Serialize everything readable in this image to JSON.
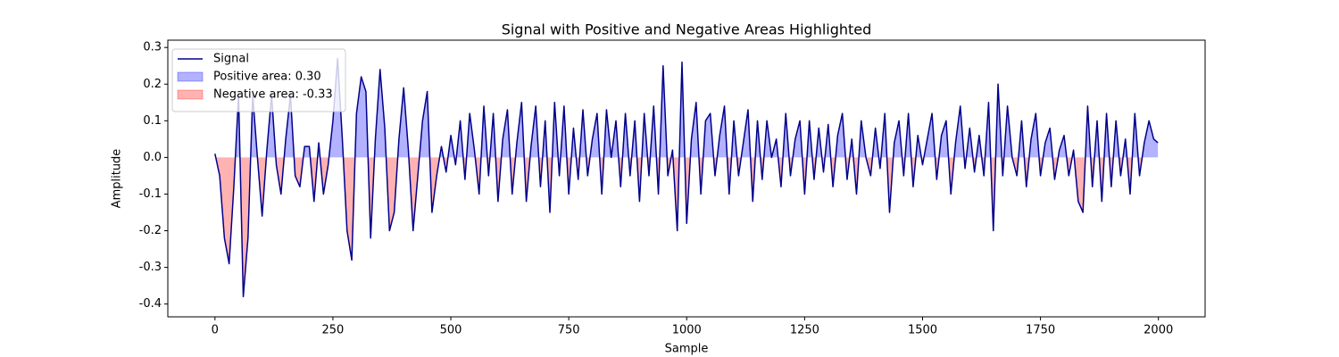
{
  "chart_data": {
    "type": "line",
    "title": "Signal with Positive and Negative Areas Highlighted",
    "xlabel": "Sample",
    "ylabel": "Amplitude",
    "x": [
      0,
      10,
      20,
      30,
      40,
      50,
      60,
      70,
      80,
      90,
      100,
      110,
      120,
      130,
      140,
      150,
      160,
      170,
      180,
      190,
      200,
      210,
      220,
      230,
      240,
      250,
      260,
      270,
      280,
      290,
      300,
      310,
      320,
      330,
      340,
      350,
      360,
      370,
      380,
      390,
      400,
      410,
      420,
      430,
      440,
      450,
      460,
      470,
      480,
      490,
      500,
      510,
      520,
      530,
      540,
      550,
      560,
      570,
      580,
      590,
      600,
      610,
      620,
      630,
      640,
      650,
      660,
      670,
      680,
      690,
      700,
      710,
      720,
      730,
      740,
      750,
      760,
      770,
      780,
      790,
      800,
      810,
      820,
      830,
      840,
      850,
      860,
      870,
      880,
      890,
      900,
      910,
      920,
      930,
      940,
      950,
      960,
      970,
      980,
      990,
      1000,
      1010,
      1020,
      1030,
      1040,
      1050,
      1060,
      1070,
      1080,
      1090,
      1100,
      1110,
      1120,
      1130,
      1140,
      1150,
      1160,
      1170,
      1180,
      1190,
      1200,
      1210,
      1220,
      1230,
      1240,
      1250,
      1260,
      1270,
      1280,
      1290,
      1300,
      1310,
      1320,
      1330,
      1340,
      1350,
      1360,
      1370,
      1380,
      1390,
      1400,
      1410,
      1420,
      1430,
      1440,
      1450,
      1460,
      1470,
      1480,
      1490,
      1500,
      1510,
      1520,
      1530,
      1540,
      1550,
      1560,
      1570,
      1580,
      1590,
      1600,
      1610,
      1620,
      1630,
      1640,
      1650,
      1660,
      1670,
      1680,
      1690,
      1700,
      1710,
      1720,
      1730,
      1740,
      1750,
      1760,
      1770,
      1780,
      1790,
      1800,
      1810,
      1820,
      1830,
      1840,
      1850,
      1860,
      1870,
      1880,
      1890,
      1900,
      1910,
      1920,
      1930,
      1940,
      1950,
      1960,
      1970,
      1980,
      1990,
      1999
    ],
    "series": [
      {
        "name": "Signal",
        "color": "#00008b",
        "values": [
          0.01,
          -0.05,
          -0.22,
          -0.29,
          -0.08,
          0.17,
          -0.38,
          -0.22,
          0.17,
          0.0,
          -0.16,
          0.02,
          0.17,
          -0.02,
          -0.1,
          0.05,
          0.17,
          -0.05,
          -0.08,
          0.03,
          0.03,
          -0.12,
          0.04,
          -0.1,
          -0.02,
          0.1,
          0.27,
          0.05,
          -0.2,
          -0.28,
          0.12,
          0.22,
          0.18,
          -0.22,
          0.05,
          0.24,
          0.08,
          -0.2,
          -0.15,
          0.05,
          0.19,
          0.02,
          -0.2,
          -0.05,
          0.1,
          0.18,
          -0.15,
          -0.05,
          0.03,
          -0.04,
          0.06,
          -0.02,
          0.1,
          -0.06,
          0.12,
          0.02,
          -0.1,
          0.14,
          -0.05,
          0.12,
          -0.12,
          0.05,
          0.13,
          -0.1,
          0.04,
          0.15,
          -0.12,
          0.03,
          0.14,
          -0.08,
          0.1,
          -0.15,
          0.15,
          -0.05,
          0.14,
          -0.1,
          0.08,
          -0.06,
          0.13,
          -0.05,
          0.05,
          0.12,
          -0.1,
          0.13,
          0.0,
          0.1,
          -0.08,
          0.12,
          -0.05,
          0.1,
          -0.12,
          0.12,
          -0.05,
          0.14,
          -0.1,
          0.25,
          -0.05,
          0.02,
          -0.2,
          0.26,
          -0.18,
          0.05,
          0.15,
          -0.1,
          0.1,
          0.12,
          -0.05,
          0.06,
          0.14,
          -0.1,
          0.1,
          -0.05,
          0.04,
          0.13,
          -0.12,
          0.1,
          -0.06,
          0.1,
          0.0,
          0.05,
          -0.08,
          0.12,
          -0.05,
          0.05,
          0.1,
          -0.1,
          0.1,
          -0.06,
          0.08,
          -0.04,
          0.09,
          -0.08,
          0.06,
          0.12,
          -0.06,
          0.05,
          -0.1,
          0.1,
          0.0,
          -0.05,
          0.08,
          -0.03,
          0.12,
          -0.15,
          0.04,
          0.1,
          -0.05,
          0.12,
          -0.08,
          0.06,
          -0.02,
          0.05,
          0.12,
          -0.06,
          0.06,
          0.1,
          -0.1,
          0.04,
          0.14,
          -0.03,
          0.08,
          -0.04,
          0.06,
          -0.05,
          0.15,
          -0.2,
          0.2,
          -0.05,
          0.14,
          0.0,
          -0.05,
          0.1,
          -0.08,
          0.05,
          0.12,
          -0.05,
          0.04,
          0.08,
          -0.06,
          0.02,
          0.06,
          -0.05,
          0.02,
          -0.12,
          -0.15,
          0.14,
          -0.08,
          0.1,
          -0.12,
          0.12,
          -0.08,
          0.1,
          -0.05,
          0.05,
          -0.1,
          0.12,
          -0.05,
          0.04,
          0.1,
          0.05,
          0.04
        ]
      }
    ],
    "areas": [
      {
        "name": "Positive area: 0.30",
        "color": "#0000ff"
      },
      {
        "name": "Negative area: -0.33",
        "color": "#ff0000"
      }
    ],
    "xlim": [
      -99.95,
      2098.95
    ],
    "xticks": [
      0,
      250,
      500,
      750,
      1000,
      1250,
      1500,
      1750,
      2000
    ],
    "ylim": [
      -0.435,
      0.32
    ],
    "yticks": [
      -0.4,
      -0.3,
      -0.2,
      -0.1,
      {
        "value": 0,
        "label": "0.0"
      },
      0.1,
      0.2,
      0.3
    ],
    "legend": "upper left"
  }
}
